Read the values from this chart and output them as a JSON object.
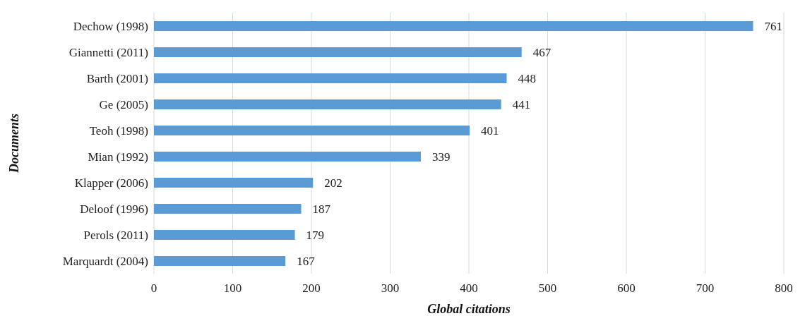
{
  "chart_data": {
    "type": "bar",
    "orientation": "horizontal",
    "xlabel": "Global citations",
    "ylabel": "Documents",
    "categories": [
      "Dechow (1998)",
      "Giannetti (2011)",
      "Barth (2001)",
      "Ge (2005)",
      "Teoh (1998)",
      "Mian (1992)",
      "Klapper (2006)",
      "Deloof (1996)",
      "Perols (2011)",
      "Marquardt (2004)"
    ],
    "values": [
      761,
      467,
      448,
      441,
      401,
      339,
      202,
      187,
      179,
      167
    ],
    "color": "#5b9bd5",
    "xlim": [
      0,
      800
    ],
    "xticks": [
      0,
      100,
      200,
      300,
      400,
      500,
      600,
      700,
      800
    ],
    "grid": "x",
    "data_labels": true,
    "legend": false
  }
}
